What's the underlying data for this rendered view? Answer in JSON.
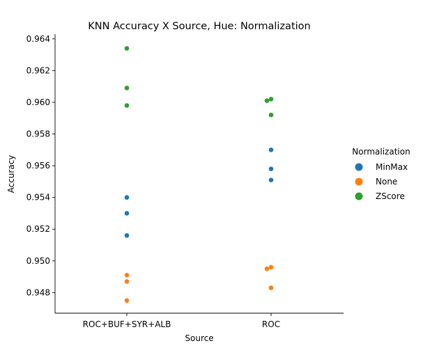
{
  "chart_data": {
    "type": "scatter",
    "title": "KNN Accuracy X Source, Hue: Normalization",
    "xlabel": "Source",
    "ylabel": "Accuracy",
    "categories": [
      "ROC+BUF+SYR+ALB",
      "ROC"
    ],
    "ylim": [
      0.9467,
      0.9643
    ],
    "yticks": [
      0.948,
      0.95,
      0.952,
      0.954,
      0.956,
      0.958,
      0.96,
      0.962,
      0.964
    ],
    "ytick_labels": [
      "0.948",
      "0.950",
      "0.952",
      "0.954",
      "0.956",
      "0.958",
      "0.960",
      "0.962",
      "0.964"
    ],
    "grid": false,
    "legend": {
      "title": "Normalization",
      "placement": "right"
    },
    "series": [
      {
        "name": "MinMax",
        "color": "#1f77b4",
        "points": [
          {
            "category": "ROC+BUF+SYR+ALB",
            "y": 0.954
          },
          {
            "category": "ROC+BUF+SYR+ALB",
            "y": 0.953
          },
          {
            "category": "ROC+BUF+SYR+ALB",
            "y": 0.9516
          },
          {
            "category": "ROC",
            "y": 0.957
          },
          {
            "category": "ROC",
            "y": 0.9558
          },
          {
            "category": "ROC",
            "y": 0.9551
          }
        ]
      },
      {
        "name": "None",
        "color": "#ff7f0e",
        "points": [
          {
            "category": "ROC+BUF+SYR+ALB",
            "y": 0.9491
          },
          {
            "category": "ROC+BUF+SYR+ALB",
            "y": 0.9487
          },
          {
            "category": "ROC+BUF+SYR+ALB",
            "y": 0.9475
          },
          {
            "category": "ROC",
            "y": 0.9496
          },
          {
            "category": "ROC",
            "y": 0.9495
          },
          {
            "category": "ROC",
            "y": 0.9483
          }
        ]
      },
      {
        "name": "ZScore",
        "color": "#2ca02c",
        "points": [
          {
            "category": "ROC+BUF+SYR+ALB",
            "y": 0.9634
          },
          {
            "category": "ROC+BUF+SYR+ALB",
            "y": 0.9609
          },
          {
            "category": "ROC+BUF+SYR+ALB",
            "y": 0.9598
          },
          {
            "category": "ROC",
            "y": 0.9602
          },
          {
            "category": "ROC",
            "y": 0.9601
          },
          {
            "category": "ROC",
            "y": 0.9592
          }
        ]
      }
    ]
  }
}
